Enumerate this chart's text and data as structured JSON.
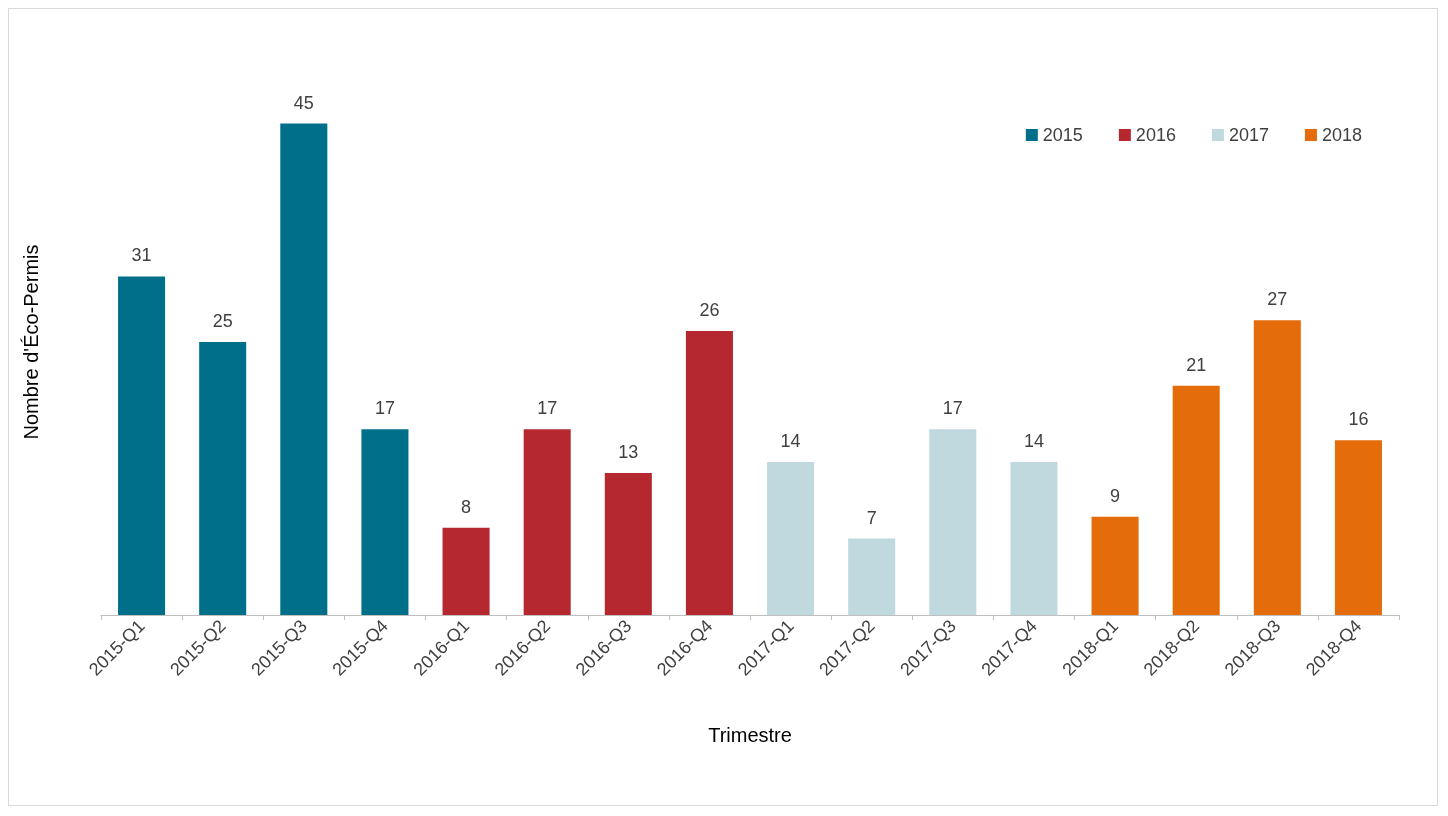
{
  "chart_data": {
    "type": "bar",
    "xlabel": "Trimestre",
    "ylabel": "Nombre d'Éco-Permis",
    "categories": [
      "2015-Q1",
      "2015-Q2",
      "2015-Q3",
      "2015-Q4",
      "2016-Q1",
      "2016-Q2",
      "2016-Q3",
      "2016-Q4",
      "2017-Q1",
      "2017-Q2",
      "2017-Q3",
      "2017-Q4",
      "2018-Q1",
      "2018-Q2",
      "2018-Q3",
      "2018-Q4"
    ],
    "series": [
      {
        "name": "2015",
        "color": "#00708a",
        "values": [
          31,
          25,
          45,
          17,
          null,
          null,
          null,
          null,
          null,
          null,
          null,
          null,
          null,
          null,
          null,
          null
        ]
      },
      {
        "name": "2016",
        "color": "#b52830",
        "values": [
          null,
          null,
          null,
          null,
          8,
          17,
          13,
          26,
          null,
          null,
          null,
          null,
          null,
          null,
          null,
          null
        ]
      },
      {
        "name": "2017",
        "color": "#bfd9df",
        "values": [
          null,
          null,
          null,
          null,
          null,
          null,
          null,
          null,
          14,
          7,
          17,
          14,
          null,
          null,
          null,
          null
        ]
      },
      {
        "name": "2018",
        "color": "#e46c0a",
        "values": [
          null,
          null,
          null,
          null,
          null,
          null,
          null,
          null,
          null,
          null,
          null,
          null,
          9,
          21,
          27,
          16
        ]
      }
    ],
    "data_labels": true,
    "legend": "top right",
    "grid": false
  }
}
